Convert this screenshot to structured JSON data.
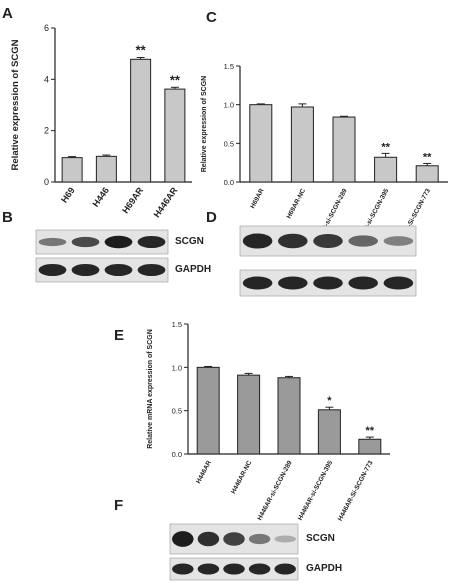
{
  "panels": {
    "A": "A",
    "B": "B",
    "C": "C",
    "D": "D",
    "E": "E",
    "F": "F"
  },
  "colors": {
    "bar": "#c8c8c8",
    "bar_dark": "#9a9a9a",
    "axis": "#222222"
  },
  "chart_data": [
    {
      "id": "A",
      "type": "bar",
      "categories": [
        "H69",
        "H446",
        "H69AR",
        "H446AR"
      ],
      "values": [
        0.95,
        1.0,
        4.78,
        3.62
      ],
      "errors": [
        0.04,
        0.05,
        0.07,
        0.07
      ],
      "significance": [
        "",
        "",
        "**",
        "**"
      ],
      "ylabel": "Relative expression of SCGN",
      "ylim": [
        0,
        6
      ],
      "yticks": [
        "0",
        "2",
        "4",
        "6"
      ],
      "grid": false
    },
    {
      "id": "C",
      "type": "bar",
      "categories": [
        "H69AR",
        "H69AR-NC",
        "H69AR-si-SCGN-289",
        "H69AR-si-SCGN-395",
        "H69AR-Si-SCGN-773"
      ],
      "values": [
        1.0,
        0.97,
        0.84,
        0.32,
        0.21
      ],
      "errors": [
        0.01,
        0.04,
        0.01,
        0.05,
        0.03
      ],
      "significance": [
        "",
        "",
        "",
        "**",
        "**"
      ],
      "ylabel": "Relative  expression  of SCGN",
      "ylim": [
        0,
        1.5
      ],
      "yticks": [
        "0.0",
        "0.5",
        "1.0",
        "1.5"
      ],
      "grid": false
    },
    {
      "id": "E",
      "type": "bar",
      "categories": [
        "H446AR",
        "H446AR-NC",
        "H446AR-si-SCGN-289",
        "H446AR-si-SCGN-395",
        "H446AR-Si-SCGN-773"
      ],
      "values": [
        1.0,
        0.91,
        0.88,
        0.51,
        0.17
      ],
      "errors": [
        0.01,
        0.02,
        0.015,
        0.03,
        0.025
      ],
      "significance": [
        "",
        "",
        "",
        "*",
        "**"
      ],
      "ylabel": "Relative mRNA expression of SCGN",
      "ylim": [
        0,
        1.5
      ],
      "yticks": [
        "0.0",
        "0.5",
        "1.0",
        "1.5"
      ],
      "grid": false
    }
  ],
  "blots": {
    "B": {
      "target_label": "SCGN",
      "loading_label": "GAPDH",
      "lanes": 4,
      "target_intensity": [
        0.45,
        0.7,
        0.95,
        0.9
      ],
      "loading_intensity": [
        0.9,
        0.9,
        0.9,
        0.9
      ]
    },
    "D": {
      "target_label": "SCGN",
      "loading_label": "GAPDH",
      "lanes": 5,
      "target_intensity": [
        0.9,
        0.85,
        0.8,
        0.55,
        0.4
      ],
      "loading_intensity": [
        0.9,
        0.9,
        0.9,
        0.9,
        0.9
      ]
    },
    "F": {
      "target_label": "SCGN",
      "loading_label": "GAPDH",
      "lanes": 5,
      "target_intensity": [
        0.95,
        0.85,
        0.75,
        0.45,
        0.15
      ],
      "loading_intensity": [
        0.9,
        0.9,
        0.9,
        0.9,
        0.9
      ]
    }
  }
}
